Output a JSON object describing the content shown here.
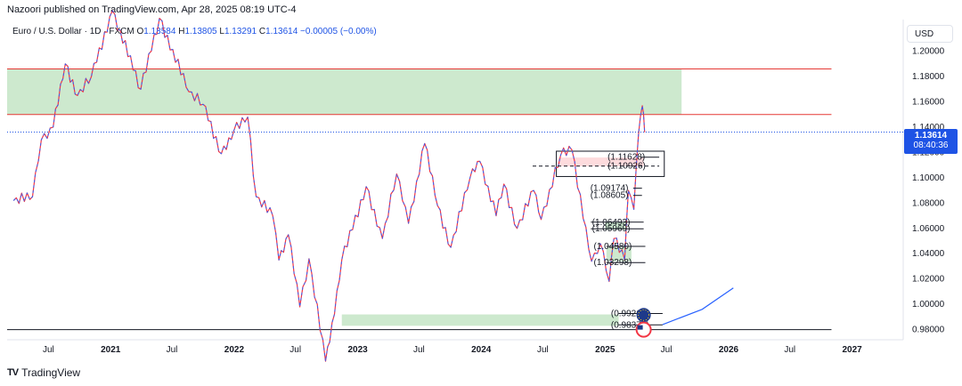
{
  "header": {
    "published": "Nazoori published on TradingView.com, Apr 28, 2025 08:19 UTC-4"
  },
  "legend": {
    "symbol": "Euro / U.S. Dollar · 1D · FXCM",
    "open_label": "O",
    "open": "1.13584",
    "high_label": "H",
    "high": "1.13805",
    "low_label": "L",
    "low": "1.13291",
    "close_label": "C",
    "close": "1.13614",
    "change": "−0.00005 (−0.00%)"
  },
  "currency_button": "USD",
  "last_price": {
    "price": "1.13614",
    "countdown": "08:40:36"
  },
  "brand": {
    "name": "TradingView",
    "logo": "TV"
  },
  "colors": {
    "bull": "#2962ff",
    "bear": "#f23645",
    "zone_green": "#4caf50",
    "zone_red": "#f23645",
    "resistance": "#e53935",
    "arrow": "#2962ff",
    "price_badge": "#1e53e5"
  },
  "chart_data": {
    "type": "line",
    "yunits": "USD",
    "ylim": [
      0.972,
      1.225
    ],
    "y_ticks": [
      "1.20000",
      "1.18000",
      "1.16000",
      "1.14000",
      "1.12000",
      "1.10000",
      "1.08000",
      "1.06000",
      "1.04000",
      "1.02000",
      "1.00000",
      "0.98000"
    ],
    "y_tick_values": [
      1.2,
      1.18,
      1.16,
      1.14,
      1.12,
      1.1,
      1.08,
      1.06,
      1.04,
      1.02,
      1.0,
      0.98
    ],
    "x_ticks": [
      {
        "label": "Jul",
        "date": "2020-07-01",
        "bold": false
      },
      {
        "label": "2021",
        "date": "2021-01-01",
        "bold": true
      },
      {
        "label": "Jul",
        "date": "2021-07-01",
        "bold": false
      },
      {
        "label": "2022",
        "date": "2022-01-01",
        "bold": true
      },
      {
        "label": "Jul",
        "date": "2022-07-01",
        "bold": false
      },
      {
        "label": "2023",
        "date": "2023-01-01",
        "bold": true
      },
      {
        "label": "Jul",
        "date": "2023-07-01",
        "bold": false
      },
      {
        "label": "2024",
        "date": "2024-01-01",
        "bold": true
      },
      {
        "label": "Jul",
        "date": "2024-07-01",
        "bold": false
      },
      {
        "label": "2025",
        "date": "2025-01-01",
        "bold": true
      },
      {
        "label": "Jul",
        "date": "2025-07-01",
        "bold": false
      },
      {
        "label": "2026",
        "date": "2026-01-01",
        "bold": true
      },
      {
        "label": "Jul",
        "date": "2026-07-01",
        "bold": false
      },
      {
        "label": "2027",
        "date": "2027-01-01",
        "bold": true
      }
    ],
    "series": [
      {
        "points": [
          [
            "2020-03-20",
            1.082
          ],
          [
            "2020-05-15",
            1.085
          ],
          [
            "2020-06-10",
            1.13
          ],
          [
            "2020-07-15",
            1.14
          ],
          [
            "2020-08-20",
            1.19
          ],
          [
            "2020-09-25",
            1.165
          ],
          [
            "2020-11-05",
            1.18
          ],
          [
            "2021-01-06",
            1.232
          ],
          [
            "2021-03-31",
            1.17
          ],
          [
            "2021-05-25",
            1.226
          ],
          [
            "2021-08-20",
            1.168
          ],
          [
            "2021-10-01",
            1.158
          ],
          [
            "2021-11-24",
            1.119
          ],
          [
            "2021-12-31",
            1.137
          ],
          [
            "2022-02-10",
            1.148
          ],
          [
            "2022-03-07",
            1.085
          ],
          [
            "2022-04-25",
            1.07
          ],
          [
            "2022-05-13",
            1.035
          ],
          [
            "2022-06-10",
            1.055
          ],
          [
            "2022-07-14",
            0.998
          ],
          [
            "2022-08-10",
            1.036
          ],
          [
            "2022-09-28",
            0.955
          ],
          [
            "2022-10-10",
            0.97
          ],
          [
            "2022-11-15",
            1.035
          ],
          [
            "2023-01-26",
            1.093
          ],
          [
            "2023-03-15",
            1.052
          ],
          [
            "2023-04-26",
            1.103
          ],
          [
            "2023-05-31",
            1.064
          ],
          [
            "2023-07-18",
            1.127
          ],
          [
            "2023-08-25",
            1.078
          ],
          [
            "2023-10-03",
            1.045
          ],
          [
            "2023-11-29",
            1.1
          ],
          [
            "2023-12-28",
            1.113
          ],
          [
            "2024-02-14",
            1.07
          ],
          [
            "2024-03-08",
            1.095
          ],
          [
            "2024-04-16",
            1.06
          ],
          [
            "2024-06-04",
            1.09
          ],
          [
            "2024-06-26",
            1.067
          ],
          [
            "2024-08-23",
            1.118
          ],
          [
            "2024-09-25",
            1.122
          ],
          [
            "2024-11-22",
            1.034
          ],
          [
            "2024-12-18",
            1.048
          ],
          [
            "2025-01-13",
            1.018
          ],
          [
            "2025-01-27",
            1.052
          ],
          [
            "2025-02-28",
            1.035
          ],
          [
            "2025-03-11",
            1.09
          ],
          [
            "2025-03-27",
            1.075
          ],
          [
            "2025-04-10",
            1.135
          ],
          [
            "2025-04-21",
            1.157
          ],
          [
            "2025-04-28",
            1.136
          ]
        ]
      }
    ],
    "zones": [
      {
        "kind": "green",
        "from": "2020-03-01",
        "to": "2025-08-15",
        "y1": 1.15,
        "y2": 1.186
      },
      {
        "kind": "green",
        "from": "2022-11-15",
        "to": "2025-02-10",
        "y1": 0.983,
        "y2": 0.992
      },
      {
        "kind": "green",
        "from": "2025-01-05",
        "to": "2025-03-20",
        "y1": 1.034,
        "y2": 1.045
      },
      {
        "kind": "green",
        "from": "2025-01-01",
        "to": "2025-03-05",
        "y1": 1.059,
        "y2": 1.065
      },
      {
        "kind": "red",
        "from": "2024-08-15",
        "to": "2025-04-25",
        "y1": 1.109,
        "y2": 1.116
      }
    ],
    "hlines": [
      {
        "y": 1.186,
        "color": "resistance",
        "from": "2020-03-01",
        "to": "2026-11-01"
      },
      {
        "y": 1.15,
        "color": "resistance",
        "from": "2020-03-01",
        "to": "2026-11-01"
      },
      {
        "y": 0.98,
        "color": "#131722",
        "from": "2020-03-01",
        "to": "2026-11-01"
      }
    ],
    "levels": [
      {
        "label": "(1.11628)",
        "y": 1.11628,
        "from": "2025-04-15",
        "to": "2025-06-10"
      },
      {
        "label": "(1.10926)",
        "y": 1.10926,
        "from": "2024-06-01",
        "to": "2025-06-10",
        "dashed": true
      },
      {
        "label": "(1.09174)",
        "y": 1.09174,
        "from": "2025-03-25",
        "to": "2025-04-20"
      },
      {
        "label": "(1.08605)",
        "y": 1.08605,
        "from": "2025-03-25",
        "to": "2025-04-20"
      },
      {
        "label": "(1.06493)",
        "y": 1.06493,
        "from": "2024-11-20",
        "to": "2025-04-25"
      },
      {
        "label": "(1.05969)",
        "y": 1.05969,
        "from": "2024-11-20",
        "to": "2025-04-25"
      },
      {
        "label": "(1.04580)",
        "y": 1.0458,
        "from": "2025-01-05",
        "to": "2025-04-30"
      },
      {
        "label": "(1.03298)",
        "y": 1.03298,
        "from": "2025-01-05",
        "to": "2025-04-30"
      },
      {
        "label": "(0.99269)",
        "y": 0.99269,
        "from": "2025-02-10",
        "to": "2025-06-20"
      },
      {
        "label": "(0.98374)",
        "y": 0.98374,
        "from": "2025-02-10",
        "to": "2025-06-20"
      }
    ],
    "boxes": [
      {
        "from": "2024-08-10",
        "to": "2025-06-25",
        "y1": 1.101,
        "y2": 1.121
      }
    ],
    "forecast": [
      [
        "2025-06-20",
        0.984
      ],
      [
        "2025-10-15",
        0.996
      ],
      [
        "2026-01-15",
        1.013
      ]
    ],
    "last_price_line": 1.13614
  }
}
